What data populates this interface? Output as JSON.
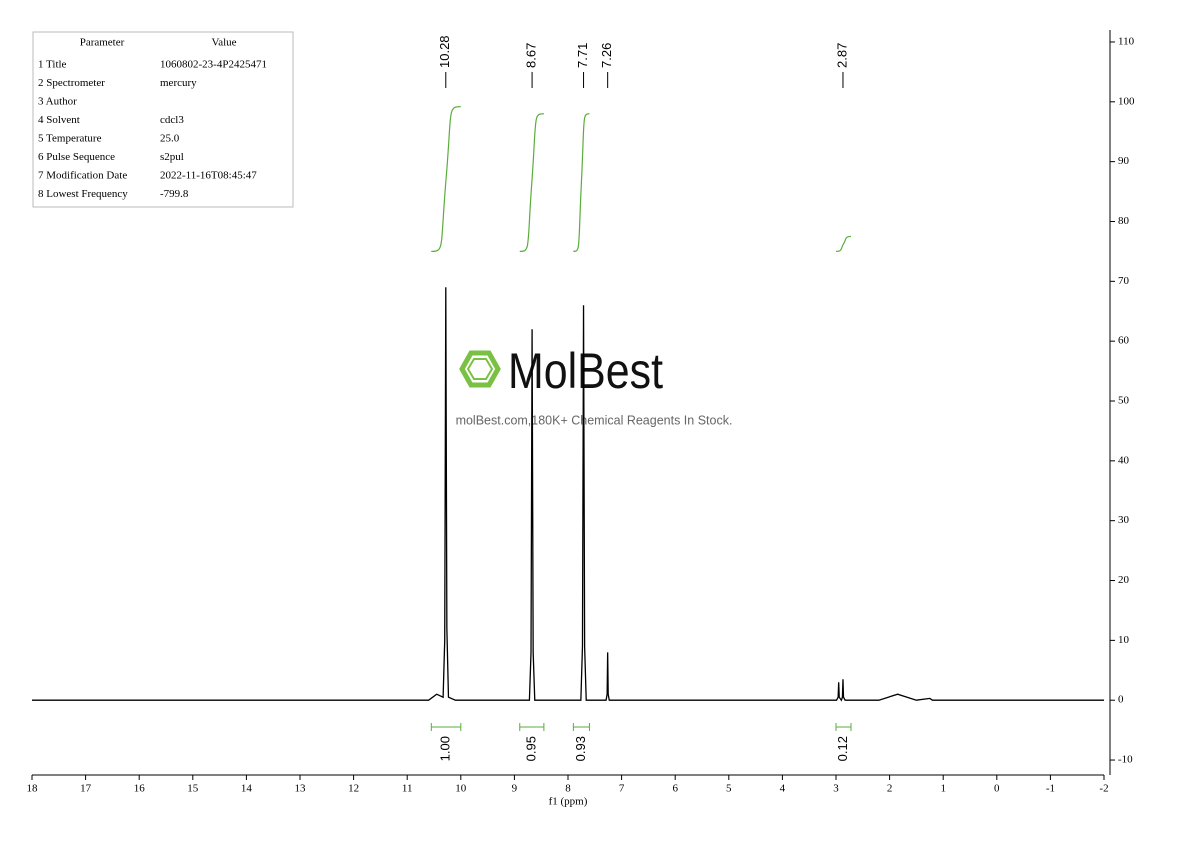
{
  "chart_data": {
    "type": "nmr",
    "xlabel": "f1 (ppm)",
    "xlim": [
      18,
      -2
    ],
    "xticks": [
      18,
      17,
      16,
      15,
      14,
      13,
      12,
      11,
      10,
      9,
      8,
      7,
      6,
      5,
      4,
      3,
      2,
      1,
      0,
      -1,
      -2
    ],
    "ylim": [
      -12.5,
      112
    ],
    "yticks": [
      -10,
      0,
      10,
      20,
      30,
      40,
      50,
      60,
      70,
      80,
      90,
      100,
      110
    ],
    "series": [
      {
        "color": "#000000",
        "x": [
          18,
          10.6,
          10.45,
          10.33,
          10.3,
          10.28,
          10.26,
          10.23,
          10.1,
          8.72,
          8.69,
          8.67,
          8.65,
          8.62,
          7.76,
          7.73,
          7.71,
          7.69,
          7.66,
          7.29,
          7.27,
          7.26,
          7.25,
          7.23,
          2.99,
          2.96,
          2.95,
          2.94,
          2.9,
          2.88,
          2.87,
          2.86,
          2.83,
          2.2,
          1.85,
          1.5,
          1.25,
          1.2,
          0.9,
          -2
        ],
        "values": [
          0,
          0,
          1,
          0.5,
          10,
          69,
          12,
          0.5,
          0,
          0,
          8,
          62,
          8,
          0,
          0,
          9,
          66,
          9,
          0,
          0,
          1,
          8,
          1,
          0,
          0,
          0.5,
          3,
          0.5,
          0,
          0.5,
          3.5,
          0.5,
          0,
          0,
          1,
          0,
          0.3,
          0,
          0,
          0
        ]
      }
    ],
    "peak_labels": [
      10.28,
      8.67,
      7.71,
      7.26,
      2.87
    ],
    "integral_color": "#5aad3c",
    "integrals": [
      {
        "range": [
          10.55,
          10.0
        ],
        "curve": [
          75,
          99.2
        ],
        "value": 1,
        "label": "1.00"
      },
      {
        "range": [
          8.9,
          8.45
        ],
        "curve": [
          75,
          98
        ],
        "value": 0.95,
        "label": "0.95"
      },
      {
        "range": [
          7.9,
          7.6
        ],
        "curve": [
          75,
          98
        ],
        "value": 0.93,
        "label": "0.93"
      },
      {
        "range": [
          3.0,
          2.72
        ],
        "curve": [
          75,
          77.5
        ],
        "value": 0.12,
        "label": "0.12"
      }
    ]
  },
  "table": {
    "header": [
      "Parameter",
      "Value"
    ],
    "rows": [
      [
        "1 Title",
        "1060802-23-4P2425471"
      ],
      [
        "2 Spectrometer",
        "mercury"
      ],
      [
        "3 Author"
      ],
      [
        "4 Solvent",
        "cdcl3"
      ],
      [
        "5 Temperature",
        "25.0"
      ],
      [
        "6 Pulse Sequence",
        "s2pul"
      ],
      [
        "7 Modification Date",
        "2022-11-16T08:45:47"
      ],
      [
        "8 Lowest Frequency",
        "-799.8"
      ]
    ]
  },
  "watermark": {
    "logo": "MolBest",
    "text": "molBest.com,180K+ Chemical Reagents In Stock."
  }
}
